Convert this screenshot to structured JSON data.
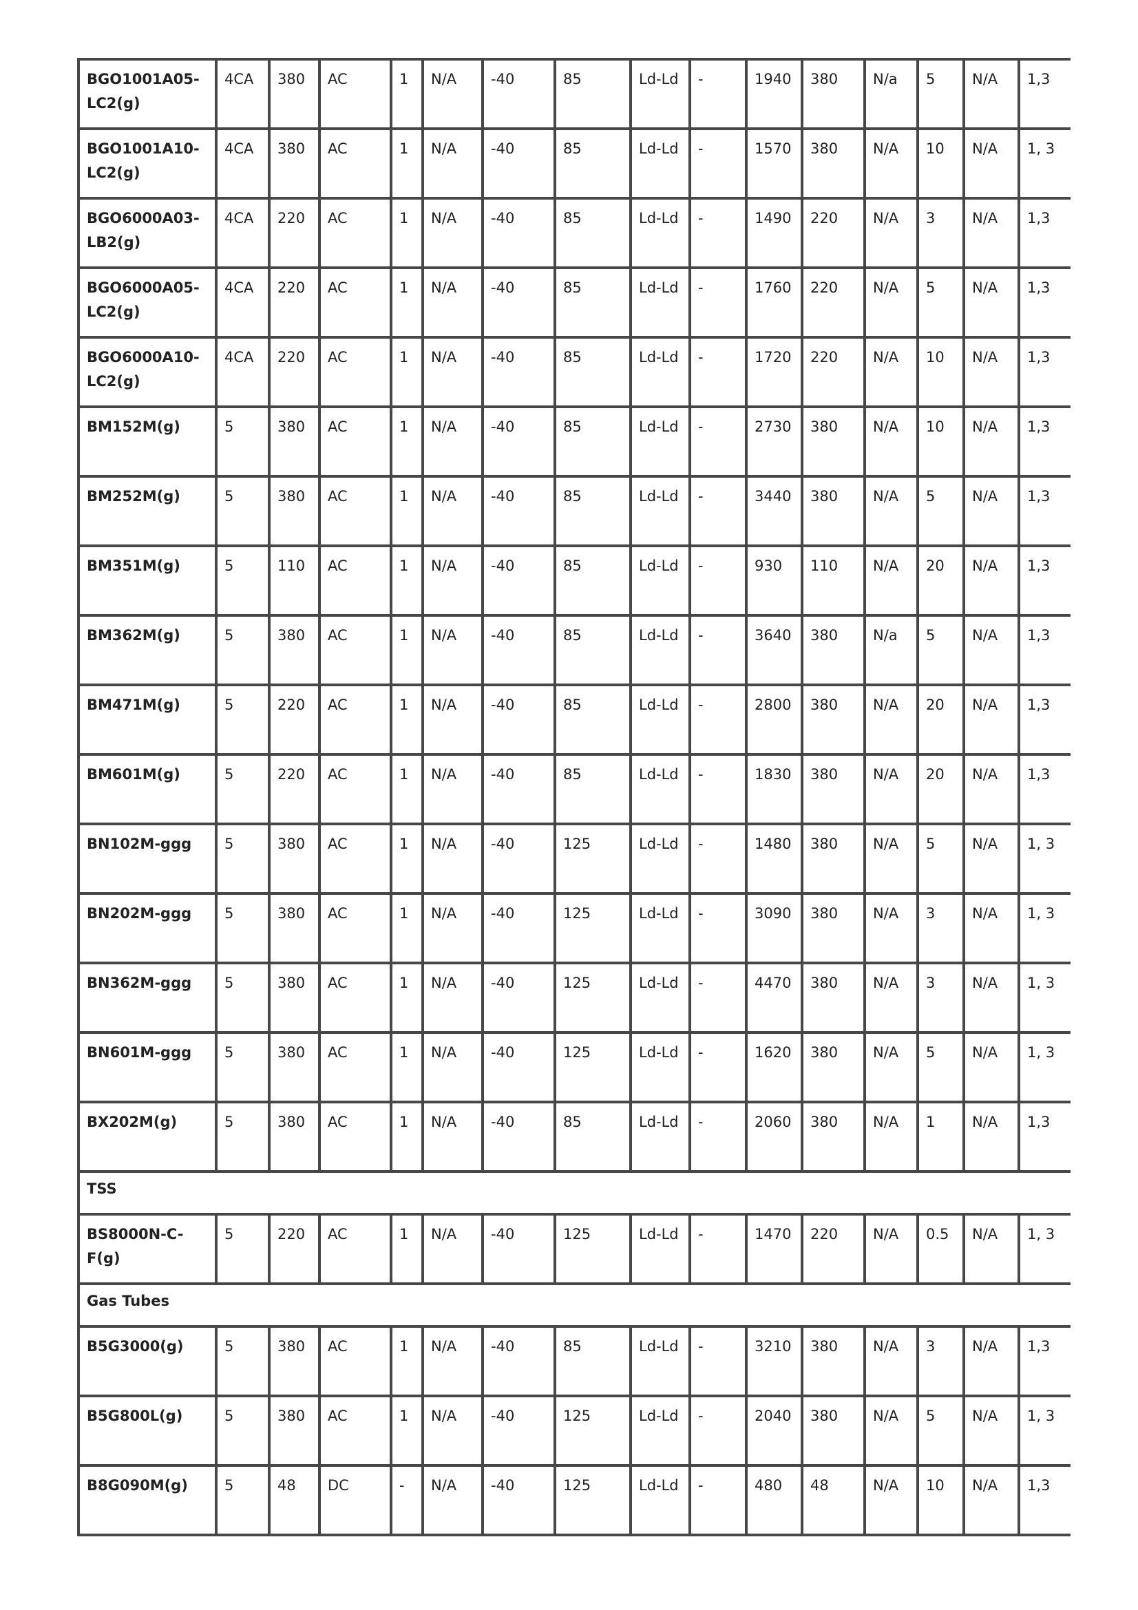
{
  "table": {
    "rows": [
      {
        "type": "row",
        "cells": [
          "BGO1001A05-LC2(g)",
          "4CA",
          "380",
          "AC",
          "1",
          "N/A",
          "-40",
          "85",
          "Ld-Ld",
          "-",
          "1940",
          "380",
          "N/a",
          "5",
          "N/A",
          "1,3"
        ]
      },
      {
        "type": "row",
        "cells": [
          "BGO1001A10-LC2(g)",
          "4CA",
          "380",
          "AC",
          "1",
          "N/A",
          "-40",
          "85",
          "Ld-Ld",
          "-",
          "1570",
          "380",
          "N/A",
          "10",
          "N/A",
          "1, 3"
        ]
      },
      {
        "type": "row",
        "cells": [
          "BGO6000A03-LB2(g)",
          "4CA",
          "220",
          "AC",
          "1",
          "N/A",
          "-40",
          "85",
          "Ld-Ld",
          "-",
          "1490",
          "220",
          "N/A",
          "3",
          "N/A",
          "1,3"
        ]
      },
      {
        "type": "row",
        "cells": [
          "BGO6000A05-LC2(g)",
          "4CA",
          "220",
          "AC",
          "1",
          "N/A",
          "-40",
          "85",
          "Ld-Ld",
          "-",
          "1760",
          "220",
          "N/A",
          "5",
          "N/A",
          "1,3"
        ]
      },
      {
        "type": "row",
        "cells": [
          "BGO6000A10-LC2(g)",
          "4CA",
          "220",
          "AC",
          "1",
          "N/A",
          "-40",
          "85",
          "Ld-Ld",
          "-",
          "1720",
          "220",
          "N/A",
          "10",
          "N/A",
          "1,3"
        ]
      },
      {
        "type": "row",
        "cells": [
          "BM152M(g)",
          "5",
          "380",
          "AC",
          "1",
          "N/A",
          "-40",
          "85",
          "Ld-Ld",
          "-",
          "2730",
          "380",
          "N/A",
          "10",
          "N/A",
          "1,3"
        ]
      },
      {
        "type": "row",
        "cells": [
          "BM252M(g)",
          "5",
          "380",
          "AC",
          "1",
          "N/A",
          "-40",
          "85",
          "Ld-Ld",
          "-",
          "3440",
          "380",
          "N/A",
          "5",
          "N/A",
          "1,3"
        ]
      },
      {
        "type": "row",
        "cells": [
          "BM351M(g)",
          "5",
          "110",
          "AC",
          "1",
          "N/A",
          "-40",
          "85",
          "Ld-Ld",
          "-",
          "930",
          "110",
          "N/A",
          "20",
          "N/A",
          "1,3"
        ]
      },
      {
        "type": "row",
        "cells": [
          "BM362M(g)",
          "5",
          "380",
          "AC",
          "1",
          "N/A",
          "-40",
          "85",
          "Ld-Ld",
          "-",
          "3640",
          "380",
          "N/a",
          "5",
          "N/A",
          "1,3"
        ]
      },
      {
        "type": "row",
        "cells": [
          "BM471M(g)",
          "5",
          "220",
          "AC",
          "1",
          "N/A",
          "-40",
          "85",
          "Ld-Ld",
          "-",
          "2800",
          "380",
          "N/A",
          "20",
          "N/A",
          "1,3"
        ]
      },
      {
        "type": "row",
        "cells": [
          "BM601M(g)",
          "5",
          "220",
          "AC",
          "1",
          "N/A",
          "-40",
          "85",
          "Ld-Ld",
          "-",
          "1830",
          "380",
          "N/A",
          "20",
          "N/A",
          "1,3"
        ]
      },
      {
        "type": "row",
        "cells": [
          "BN102M-ggg",
          "5",
          "380",
          "AC",
          "1",
          "N/A",
          "-40",
          "125",
          "Ld-Ld",
          "-",
          "1480",
          "380",
          "N/A",
          "5",
          "N/A",
          "1, 3"
        ]
      },
      {
        "type": "row",
        "cells": [
          "BN202M-ggg",
          "5",
          "380",
          "AC",
          "1",
          "N/A",
          "-40",
          "125",
          "Ld-Ld",
          "-",
          "3090",
          "380",
          "N/A",
          "3",
          "N/A",
          "1, 3"
        ]
      },
      {
        "type": "row",
        "cells": [
          "BN362M-ggg",
          "5",
          "380",
          "AC",
          "1",
          "N/A",
          "-40",
          "125",
          "Ld-Ld",
          "-",
          "4470",
          "380",
          "N/A",
          "3",
          "N/A",
          "1, 3"
        ]
      },
      {
        "type": "row",
        "cells": [
          "BN601M-ggg",
          "5",
          "380",
          "AC",
          "1",
          "N/A",
          "-40",
          "125",
          "Ld-Ld",
          "-",
          "1620",
          "380",
          "N/A",
          "5",
          "N/A",
          "1, 3"
        ]
      },
      {
        "type": "row",
        "cells": [
          "BX202M(g)",
          "5",
          "380",
          "AC",
          "1",
          "N/A",
          "-40",
          "85",
          "Ld-Ld",
          "-",
          "2060",
          "380",
          "N/A",
          "1",
          "N/A",
          "1,3"
        ]
      },
      {
        "type": "section",
        "label": "TSS"
      },
      {
        "type": "row",
        "cells": [
          "BS8000N-C-F(g)",
          "5",
          "220",
          "AC",
          "1",
          "N/A",
          "-40",
          "125",
          "Ld-Ld",
          "-",
          "1470",
          "220",
          "N/A",
          "0.5",
          "N/A",
          "1, 3"
        ]
      },
      {
        "type": "section",
        "label": "Gas Tubes"
      },
      {
        "type": "row",
        "cells": [
          "B5G3000(g)",
          "5",
          "380",
          "AC",
          "1",
          "N/A",
          "-40",
          "85",
          "Ld-Ld",
          "-",
          "3210",
          "380",
          "N/A",
          "3",
          "N/A",
          "1,3"
        ]
      },
      {
        "type": "row",
        "cells": [
          "B5G800L(g)",
          "5",
          "380",
          "AC",
          "1",
          "N/A",
          "-40",
          "125",
          "Ld-Ld",
          "-",
          "2040",
          "380",
          "N/A",
          "5",
          "N/A",
          "1, 3"
        ]
      },
      {
        "type": "row",
        "cells": [
          "B8G090M(g)",
          "5",
          "48",
          "DC",
          "-",
          "N/A",
          "-40",
          "125",
          "Ld-Ld",
          "-",
          "480",
          "48",
          "N/A",
          "10",
          "N/A",
          "1,3"
        ]
      }
    ]
  }
}
